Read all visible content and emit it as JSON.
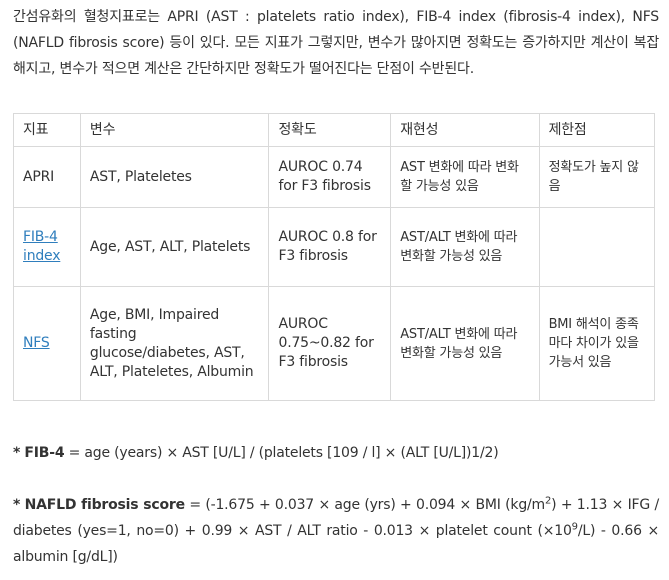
{
  "intro_text": "간섬유화의 혈청지표로는 APRI (AST : platelets ratio index), FIB-4 index (fibrosis-4 index), NFS (NAFLD fibrosis score) 등이 있다. 모든 지표가 그렇지만, 변수가 많아지면 정확도는 증가하지만 계산이 복잡해지고, 변수가 적으면 계산은 간단하지만 정확도가 떨어진다는 단점이 수반된다.",
  "table": {
    "headers": [
      "지표",
      "변수",
      "정확도",
      "재현성",
      "제한점"
    ],
    "rows": [
      {
        "index": "APRI",
        "variables": "AST, Plateletes",
        "accuracy": "AUROC 0.74 for F3 fibrosis",
        "reproducibility": "AST 변화에 따라 변화할 가능성 있음",
        "limitation": "정확도가 높지 않음"
      },
      {
        "index": "FIB-4 index",
        "variables": "Age, AST, ALT, Platelets",
        "accuracy": "AUROC 0.8 for F3 fibrosis",
        "reproducibility": "AST/ALT 변화에 따라 변화할 가능성 있음",
        "limitation": ""
      },
      {
        "index": "NFS",
        "variables": "Age, BMI, Impaired fasting glucose/diabetes, AST, ALT, Plateletes, Albumin",
        "accuracy": "AUROC 0.75~0.82 for F3 fibrosis",
        "reproducibility": "AST/ALT 변화에 따라 변화할 가능성 있음",
        "limitation": "BMI 해석이 종족마다 차이가 있을 가능서 있음"
      }
    ]
  },
  "formula_fib4": {
    "bullet": "*",
    "label": "FIB-4",
    "text": " = age (years) × AST [U/L] / (platelets [109 / l] × (ALT [U/L])1/2)"
  },
  "formula_nfs": {
    "bullet": "*",
    "label": "NAFLD fibrosis score",
    "text_a": " = (-1.675 + 0.037 × age (yrs) + 0.094 × BMI (kg/m",
    "sup_a": "2",
    "text_b": ") + 1.13 × IFG / diabetes (yes=1, no=0) + 0.99 × AST / ALT ratio - 0.013 × platelet count (×10",
    "sup_b": "9",
    "text_c": "/L) - 0.66 × albumin [g/dL])"
  },
  "colors": {
    "text": "#333333",
    "link": "#2f7ebd",
    "border": "#d9d9d9"
  }
}
